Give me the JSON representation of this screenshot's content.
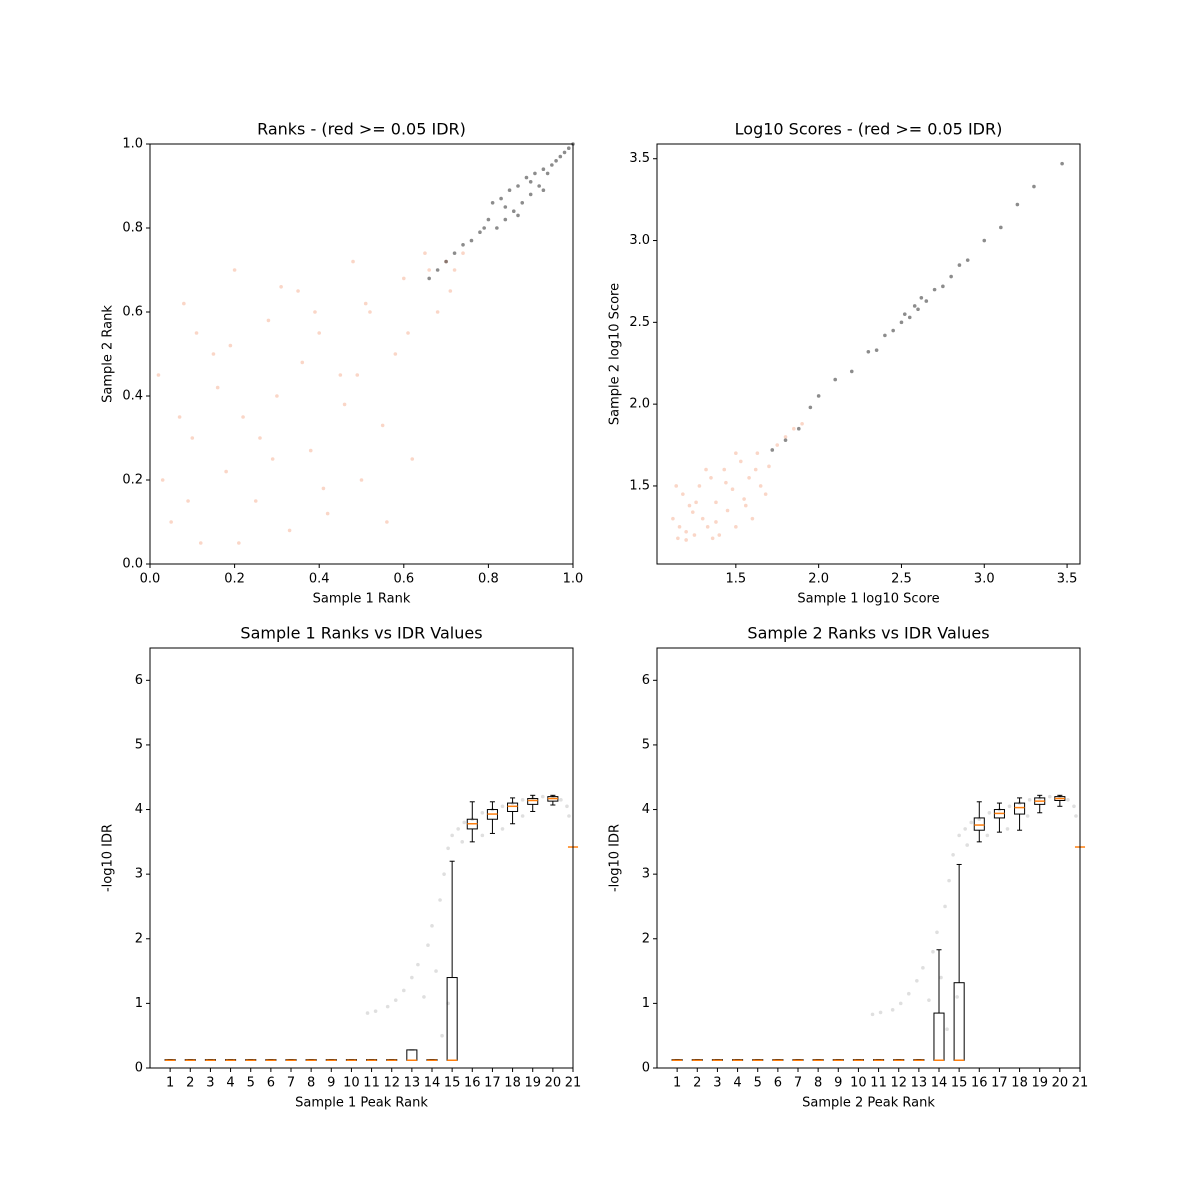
{
  "chart_data": [
    {
      "type": "scatter",
      "title": "Ranks - (red >= 0.05 IDR)",
      "xlabel": "Sample 1 Rank",
      "ylabel": "Sample 2 Rank",
      "xlim": [
        0,
        1
      ],
      "ylim": [
        0,
        1
      ],
      "xticks": [
        {
          "value": 0,
          "label": "0.0"
        },
        0.2,
        0.4,
        0.6,
        0.8,
        {
          "value": 1,
          "label": "1.0"
        }
      ],
      "yticks": [
        {
          "value": 0,
          "label": "0.0"
        },
        0.2,
        0.4,
        0.6,
        0.8,
        {
          "value": 1,
          "label": "1.0"
        }
      ],
      "series": [
        {
          "color": "#f4a582",
          "x": [
            0.02,
            0.05,
            0.08,
            0.1,
            0.12,
            0.15,
            0.18,
            0.2,
            0.22,
            0.25,
            0.28,
            0.3,
            0.33,
            0.35,
            0.38,
            0.4,
            0.42,
            0.45,
            0.48,
            0.5,
            0.52,
            0.55,
            0.58,
            0.6,
            0.62,
            0.65,
            0.68,
            0.7,
            0.72,
            0.03,
            0.07,
            0.11,
            0.16,
            0.21,
            0.26,
            0.31,
            0.36,
            0.41,
            0.46,
            0.51,
            0.56,
            0.61,
            0.66,
            0.71,
            0.74,
            0.09,
            0.19,
            0.29,
            0.39,
            0.49
          ],
          "y": [
            0.45,
            0.1,
            0.62,
            0.3,
            0.05,
            0.5,
            0.22,
            0.7,
            0.35,
            0.15,
            0.58,
            0.4,
            0.08,
            0.65,
            0.27,
            0.55,
            0.12,
            0.45,
            0.72,
            0.2,
            0.6,
            0.33,
            0.5,
            0.68,
            0.25,
            0.74,
            0.6,
            0.72,
            0.7,
            0.2,
            0.35,
            0.55,
            0.42,
            0.05,
            0.3,
            0.66,
            0.48,
            0.18,
            0.38,
            0.62,
            0.1,
            0.55,
            0.7,
            0.65,
            0.74,
            0.15,
            0.52,
            0.25,
            0.6,
            0.45
          ]
        },
        {
          "color": "#000000",
          "x": [
            0.66,
            0.68,
            0.7,
            0.72,
            0.74,
            0.76,
            0.78,
            0.79,
            0.8,
            0.81,
            0.82,
            0.83,
            0.84,
            0.85,
            0.86,
            0.87,
            0.88,
            0.89,
            0.9,
            0.91,
            0.92,
            0.93,
            0.94,
            0.95,
            0.96,
            0.97,
            0.98,
            0.99,
            1.0,
            0.84,
            0.87,
            0.9,
            0.93
          ],
          "y": [
            0.68,
            0.7,
            0.72,
            0.74,
            0.76,
            0.77,
            0.79,
            0.8,
            0.82,
            0.86,
            0.8,
            0.87,
            0.82,
            0.89,
            0.84,
            0.9,
            0.86,
            0.92,
            0.88,
            0.93,
            0.9,
            0.94,
            0.93,
            0.95,
            0.96,
            0.97,
            0.98,
            0.99,
            1.0,
            0.85,
            0.83,
            0.91,
            0.89
          ]
        }
      ]
    },
    {
      "type": "scatter",
      "title": "Log10 Scores - (red >= 0.05 IDR)",
      "xlabel": "Sample 1 log10 Score",
      "ylabel": "Sample 2 log10 Score",
      "xlim": [
        1.024,
        3.578
      ],
      "ylim": [
        1.023,
        3.59
      ],
      "xticks": [
        1.5,
        {
          "value": 2,
          "label": "2.0"
        },
        2.5,
        {
          "value": 3,
          "label": "3.0"
        },
        3.5
      ],
      "yticks": [
        1.5,
        {
          "value": 2,
          "label": "2.0"
        },
        2.5,
        {
          "value": 3,
          "label": "3.0"
        },
        3.5
      ],
      "series": [
        {
          "color": "#f4a582",
          "x": [
            1.12,
            1.15,
            1.18,
            1.2,
            1.22,
            1.25,
            1.28,
            1.3,
            1.33,
            1.35,
            1.38,
            1.4,
            1.43,
            1.45,
            1.48,
            1.5,
            1.53,
            1.55,
            1.58,
            1.6,
            1.63,
            1.65,
            1.7,
            1.75,
            1.8,
            1.85,
            1.9,
            1.14,
            1.2,
            1.26,
            1.32,
            1.38,
            1.44,
            1.5,
            1.56,
            1.62,
            1.68,
            1.16,
            1.24,
            1.36
          ],
          "y": [
            1.3,
            1.18,
            1.45,
            1.22,
            1.38,
            1.2,
            1.5,
            1.3,
            1.25,
            1.55,
            1.4,
            1.2,
            1.6,
            1.35,
            1.48,
            1.25,
            1.65,
            1.42,
            1.55,
            1.3,
            1.7,
            1.5,
            1.62,
            1.75,
            1.8,
            1.85,
            1.88,
            1.5,
            1.17,
            1.4,
            1.6,
            1.28,
            1.52,
            1.7,
            1.38,
            1.6,
            1.45,
            1.25,
            1.34,
            1.18
          ]
        },
        {
          "color": "#000000",
          "x": [
            1.72,
            1.8,
            1.88,
            1.95,
            2.0,
            2.1,
            2.2,
            2.3,
            2.35,
            2.4,
            2.45,
            2.5,
            2.52,
            2.55,
            2.58,
            2.6,
            2.62,
            2.65,
            2.7,
            2.75,
            2.8,
            2.85,
            2.9,
            3.0,
            3.1,
            3.2,
            3.3,
            3.47
          ],
          "y": [
            1.72,
            1.78,
            1.85,
            1.98,
            2.05,
            2.15,
            2.2,
            2.32,
            2.33,
            2.42,
            2.45,
            2.5,
            2.55,
            2.53,
            2.6,
            2.58,
            2.65,
            2.63,
            2.7,
            2.72,
            2.78,
            2.85,
            2.88,
            3.0,
            3.08,
            3.22,
            3.33,
            3.47
          ]
        }
      ]
    },
    {
      "type": "box",
      "title": "Sample 1 Ranks vs IDR Values",
      "xlabel": "Sample 1 Peak Rank",
      "ylabel": "-log10 IDR",
      "xlim": [
        0,
        21
      ],
      "ylim": [
        0,
        6.5
      ],
      "xticks": [
        1,
        2,
        3,
        4,
        5,
        6,
        7,
        8,
        9,
        10,
        11,
        12,
        13,
        14,
        15,
        16,
        17,
        18,
        19,
        20,
        21
      ],
      "yticks": [
        0,
        1,
        2,
        3,
        4,
        5,
        6
      ],
      "points": {
        "color": "#808080",
        "x": [
          10.8,
          11.2,
          11.8,
          12.2,
          12.6,
          13,
          13.3,
          13.6,
          13.8,
          14,
          14.2,
          14.4,
          14.6,
          14.8,
          15,
          15.3,
          15.6,
          16,
          16.5,
          17,
          17.5,
          18,
          18.5,
          19,
          19.5,
          20,
          20.4,
          20.7,
          15.5,
          16.5,
          17.5,
          18.5,
          14.5,
          14.8,
          20.8
        ],
        "y": [
          0.85,
          0.88,
          0.95,
          1.05,
          1.2,
          1.4,
          1.6,
          1.1,
          1.9,
          2.2,
          1.5,
          2.6,
          3.0,
          3.4,
          3.6,
          3.7,
          3.8,
          3.85,
          3.95,
          4.0,
          4.05,
          4.1,
          4.15,
          4.18,
          4.2,
          4.2,
          4.15,
          4.05,
          3.5,
          3.6,
          3.7,
          3.9,
          0.5,
          1.0,
          3.9
        ]
      },
      "boxes": {
        "color": "#000000",
        "median_color": "#ff7f0e",
        "x": [
          1,
          2,
          3,
          4,
          5,
          6,
          7,
          8,
          9,
          10,
          11,
          12,
          13,
          14,
          15,
          16,
          17,
          18,
          19,
          20,
          21
        ],
        "whislo": [
          0.12,
          0.12,
          0.12,
          0.12,
          0.12,
          0.12,
          0.12,
          0.12,
          0.12,
          0.12,
          0.12,
          0.12,
          0.12,
          0.12,
          0.12,
          3.5,
          3.63,
          3.78,
          3.97,
          4.07,
          3.42
        ],
        "q1": [
          0.12,
          0.12,
          0.12,
          0.12,
          0.12,
          0.12,
          0.12,
          0.12,
          0.12,
          0.12,
          0.12,
          0.12,
          0.12,
          0.12,
          0.12,
          3.7,
          3.85,
          3.97,
          4.08,
          4.13,
          3.42
        ],
        "median": [
          0.12,
          0.12,
          0.12,
          0.12,
          0.12,
          0.12,
          0.12,
          0.12,
          0.12,
          0.12,
          0.12,
          0.12,
          0.12,
          0.12,
          0.12,
          3.78,
          3.93,
          4.05,
          4.14,
          4.17,
          3.42
        ],
        "q3": [
          0.13,
          0.13,
          0.13,
          0.13,
          0.13,
          0.13,
          0.13,
          0.13,
          0.13,
          0.13,
          0.13,
          0.13,
          0.28,
          0.13,
          1.4,
          3.85,
          4.0,
          4.1,
          4.17,
          4.2,
          3.42
        ],
        "whishi": [
          0.13,
          0.13,
          0.13,
          0.13,
          0.13,
          0.13,
          0.13,
          0.13,
          0.13,
          0.13,
          0.13,
          0.13,
          0.28,
          0.13,
          3.2,
          4.12,
          4.12,
          4.18,
          4.22,
          4.22,
          3.42
        ]
      }
    },
    {
      "type": "box",
      "title": "Sample 2 Ranks vs IDR Values",
      "xlabel": "Sample 2 Peak Rank",
      "ylabel": "-log10 IDR",
      "xlim": [
        0,
        21
      ],
      "ylim": [
        0,
        6.5
      ],
      "xticks": [
        1,
        2,
        3,
        4,
        5,
        6,
        7,
        8,
        9,
        10,
        11,
        12,
        13,
        14,
        15,
        16,
        17,
        18,
        19,
        20,
        21
      ],
      "yticks": [
        0,
        1,
        2,
        3,
        4,
        5,
        6
      ],
      "points": {
        "color": "#808080",
        "x": [
          10.7,
          11.1,
          11.7,
          12.1,
          12.5,
          12.9,
          13.2,
          13.5,
          13.7,
          13.9,
          14.1,
          14.3,
          14.5,
          14.7,
          15,
          15.3,
          15.6,
          16,
          16.5,
          17,
          17.5,
          18,
          18.5,
          19,
          19.5,
          20,
          20.4,
          20.7,
          15.4,
          16.4,
          17.4,
          18.4,
          14.4,
          14.9,
          20.8
        ],
        "y": [
          0.83,
          0.86,
          0.9,
          1.0,
          1.15,
          1.35,
          1.55,
          1.05,
          1.8,
          2.1,
          1.4,
          2.5,
          2.9,
          3.3,
          3.6,
          3.7,
          3.8,
          3.85,
          3.95,
          4.0,
          4.05,
          4.1,
          4.15,
          4.18,
          4.2,
          4.2,
          4.15,
          4.05,
          3.45,
          3.6,
          3.7,
          3.9,
          0.6,
          1.1,
          3.9
        ]
      },
      "boxes": {
        "color": "#000000",
        "median_color": "#ff7f0e",
        "x": [
          1,
          2,
          3,
          4,
          5,
          6,
          7,
          8,
          9,
          10,
          11,
          12,
          13,
          14,
          15,
          16,
          17,
          18,
          19,
          20,
          21
        ],
        "whislo": [
          0.12,
          0.12,
          0.12,
          0.12,
          0.12,
          0.12,
          0.12,
          0.12,
          0.12,
          0.12,
          0.12,
          0.12,
          0.12,
          0.12,
          0.12,
          3.5,
          3.65,
          3.68,
          3.95,
          4.05,
          3.42
        ],
        "q1": [
          0.12,
          0.12,
          0.12,
          0.12,
          0.12,
          0.12,
          0.12,
          0.12,
          0.12,
          0.12,
          0.12,
          0.12,
          0.12,
          0.12,
          0.12,
          3.68,
          3.87,
          3.93,
          4.08,
          4.14,
          3.42
        ],
        "median": [
          0.12,
          0.12,
          0.12,
          0.12,
          0.12,
          0.12,
          0.12,
          0.12,
          0.12,
          0.12,
          0.12,
          0.12,
          0.12,
          0.12,
          0.12,
          3.76,
          3.94,
          4.03,
          4.13,
          4.17,
          3.42
        ],
        "q3": [
          0.13,
          0.13,
          0.13,
          0.13,
          0.13,
          0.13,
          0.13,
          0.13,
          0.13,
          0.13,
          0.13,
          0.13,
          0.13,
          0.85,
          1.32,
          3.87,
          4.0,
          4.1,
          4.18,
          4.2,
          3.42
        ],
        "whishi": [
          0.13,
          0.13,
          0.13,
          0.13,
          0.13,
          0.13,
          0.13,
          0.13,
          0.13,
          0.13,
          0.13,
          0.13,
          0.13,
          1.83,
          3.15,
          4.12,
          4.1,
          4.18,
          4.22,
          4.22,
          3.42
        ]
      }
    }
  ]
}
